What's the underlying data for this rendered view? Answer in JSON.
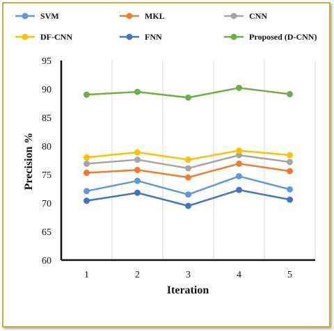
{
  "chart_data": {
    "type": "line",
    "categories": [
      "1",
      "2",
      "3",
      "4",
      "5"
    ],
    "xlabel": "Iteration",
    "ylabel": "Precision %",
    "ylim": [
      60,
      95
    ],
    "yticks": [
      "60",
      "65",
      "70",
      "75",
      "80",
      "85",
      "90",
      "95"
    ],
    "grid": "vertical",
    "legend_position": "top",
    "series": [
      {
        "name": "SVM",
        "color": "#5b9bd5",
        "values": [
          72.1,
          73.9,
          71.5,
          74.7,
          72.4
        ]
      },
      {
        "name": "MKL",
        "color": "#ed7d31",
        "values": [
          75.3,
          75.8,
          74.5,
          76.9,
          75.6
        ]
      },
      {
        "name": "CNN",
        "color": "#a5a5a5",
        "values": [
          76.9,
          77.6,
          76.1,
          78.4,
          77.2
        ]
      },
      {
        "name": "DF-CNN",
        "color": "#ffc000",
        "values": [
          78.0,
          78.9,
          77.6,
          79.2,
          78.4
        ]
      },
      {
        "name": "FNN",
        "color": "#4472c4",
        "values": [
          70.4,
          71.8,
          69.5,
          72.3,
          70.6
        ]
      },
      {
        "name": "Proposed (D-CNN)",
        "color": "#70ad47",
        "values": [
          89.0,
          89.5,
          88.5,
          90.2,
          89.1
        ]
      }
    ]
  }
}
